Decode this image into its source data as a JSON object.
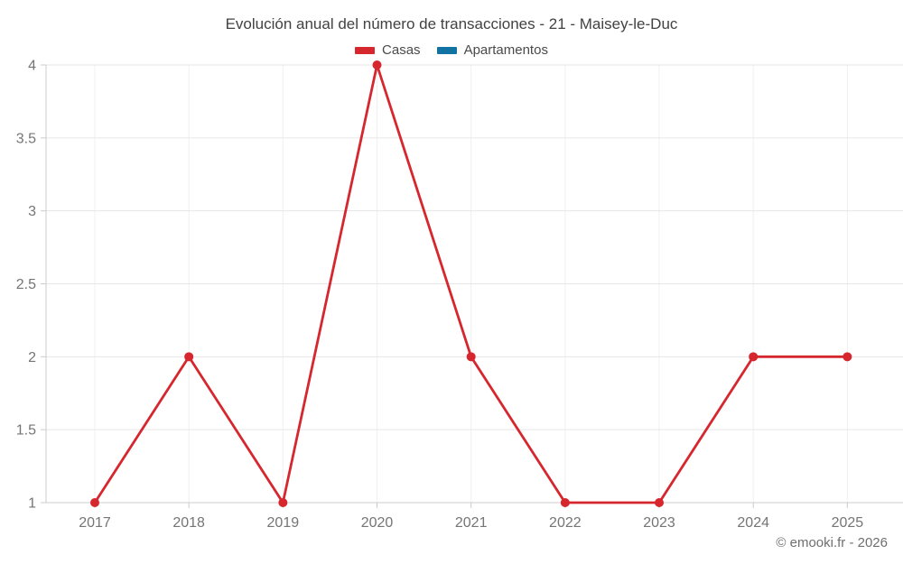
{
  "title": "Evolución anual del número de transacciones - 21 - Maisey-le-Duc",
  "footer": "© emooki.fr - 2026",
  "legend": {
    "items": [
      {
        "label": "Casas",
        "color": "#d6262e"
      },
      {
        "label": "Apartamentos",
        "color": "#1273a2"
      }
    ]
  },
  "colors": {
    "casas": "#d6262e",
    "apartamentos": "#1273a2",
    "axis_line": "#cccccc",
    "grid_horizontal": "#e6e6e6",
    "grid_vertical": "#f0f0f0",
    "tick_label": "#757575"
  },
  "chart_data": {
    "type": "line",
    "title": "Evolución anual del número de transacciones - 21 - Maisey-le-Duc",
    "categories": [
      "2017",
      "2018",
      "2019",
      "2020",
      "2021",
      "2022",
      "2023",
      "2024",
      "2025"
    ],
    "series": [
      {
        "name": "Casas",
        "color": "#d6262e",
        "values": [
          1,
          2,
          1,
          4,
          2,
          1,
          1,
          2,
          2
        ]
      },
      {
        "name": "Apartamentos",
        "color": "#1273a2",
        "values": []
      }
    ],
    "xlabel": "",
    "ylabel": "",
    "ylim": [
      1,
      4
    ],
    "yticks": [
      1,
      1.5,
      2,
      2.5,
      3,
      3.5,
      4
    ],
    "grid": true,
    "legend_position": "top",
    "point_markers": true
  }
}
